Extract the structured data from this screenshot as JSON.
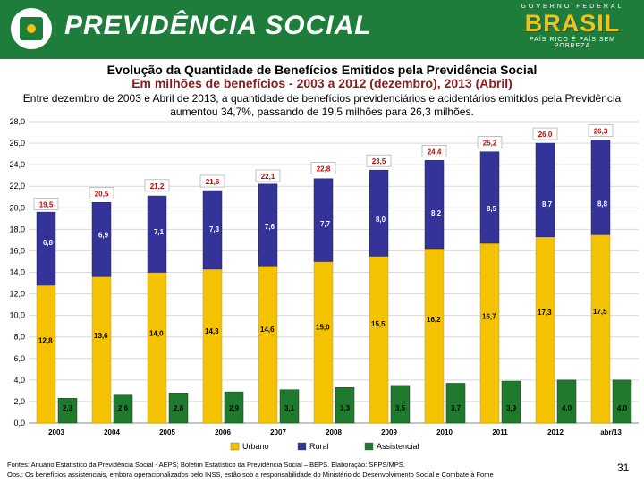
{
  "header": {
    "brand": "PREVIDÊNCIA SOCIAL",
    "gov_label": "GOVERNO FEDERAL",
    "gov_country": "BRASIL",
    "gov_slogan": "PAÍS RICO É PAÍS SEM POBREZA"
  },
  "title": "Evolução da Quantidade de Benefícios Emitidos pela Previdência Social",
  "subtitle": "Em milhões de benefícios - 2003 a 2012 (dezembro), 2013 (Abril)",
  "description": "Entre dezembro de 2003 e Abril de 2013, a quantidade de benefícios previdenciários e acidentários emitidos pela Previdência aumentou 34,7%, passando de 19,5 milhões para 26,3 milhões.",
  "footer": {
    "sources": "Fontes: Anuário Estatístico da Previdência Social - AEPS; Boletim Estatístico da Previdência Social – BEPS. Elaboração: SPPS/MPS.",
    "note": "Obs.: Os benefícios assistenciais, embora operacionalizados pelo INSS, estão sob a responsabilidade do Ministério do Desenvolvimento Social e Combate à Fome",
    "page": "31"
  },
  "colors": {
    "urbano": "#f5c200",
    "rural": "#33339a",
    "assistencial": "#1f7a2e",
    "total_label": "#cc0000",
    "header_bg": "#1e7d3a"
  },
  "chart_data": {
    "type": "bar",
    "title": "Evolução da Quantidade de Benefícios Emitidos pela Previdência Social",
    "categories": [
      "2003",
      "2004",
      "2005",
      "2006",
      "2007",
      "2008",
      "2009",
      "2010",
      "2011",
      "2012",
      "abr/13"
    ],
    "series": [
      {
        "name": "Urbano",
        "values": [
          12.8,
          13.6,
          14.0,
          14.3,
          14.6,
          15.0,
          15.5,
          16.2,
          16.7,
          17.3,
          17.5
        ],
        "labels": [
          "12,8",
          "13,6",
          "14,0",
          "14,3",
          "14,6",
          "15,0",
          "15,5",
          "16,2",
          "16,7",
          "17,3",
          "17,5"
        ]
      },
      {
        "name": "Rural",
        "values": [
          6.8,
          6.9,
          7.1,
          7.3,
          7.6,
          7.7,
          8.0,
          8.2,
          8.5,
          8.7,
          8.8
        ],
        "labels": [
          "6,8",
          "6,9",
          "7,1",
          "7,3",
          "7,6",
          "7,7",
          "8,0",
          "8,2",
          "8,5",
          "8,7",
          "8,8"
        ]
      },
      {
        "name": "Assistencial",
        "values": [
          2.3,
          2.6,
          2.8,
          2.9,
          3.1,
          3.3,
          3.5,
          3.7,
          3.9,
          4.0,
          4.0
        ],
        "labels": [
          "2,3",
          "2,6",
          "2,8",
          "2,9",
          "3,1",
          "3,3",
          "3,5",
          "3,7",
          "3,9",
          "4,0",
          "4,0"
        ]
      }
    ],
    "totals": [
      19.5,
      20.5,
      21.2,
      21.6,
      22.1,
      22.8,
      23.5,
      24.4,
      25.2,
      26.0,
      26.3
    ],
    "total_labels": [
      "19,5",
      "20,5",
      "21,2",
      "21,6",
      "22,1",
      "22,8",
      "23,5",
      "24,4",
      "25,2",
      "26,0",
      "26,3"
    ],
    "stacked_series": [
      "Urbano",
      "Rural"
    ],
    "ylim": [
      0,
      28
    ],
    "yticks": [
      0,
      2,
      4,
      6,
      8,
      10,
      12,
      14,
      16,
      18,
      20,
      22,
      24,
      26,
      28
    ],
    "ytick_labels": [
      "0,0",
      "2,0",
      "4,0",
      "6,0",
      "8,0",
      "10,0",
      "12,0",
      "14,0",
      "16,0",
      "18,0",
      "20,0",
      "22,0",
      "24,0",
      "26,0",
      "28,0"
    ],
    "grid": true,
    "legend": "bottom",
    "xlabel": "",
    "ylabel": ""
  }
}
